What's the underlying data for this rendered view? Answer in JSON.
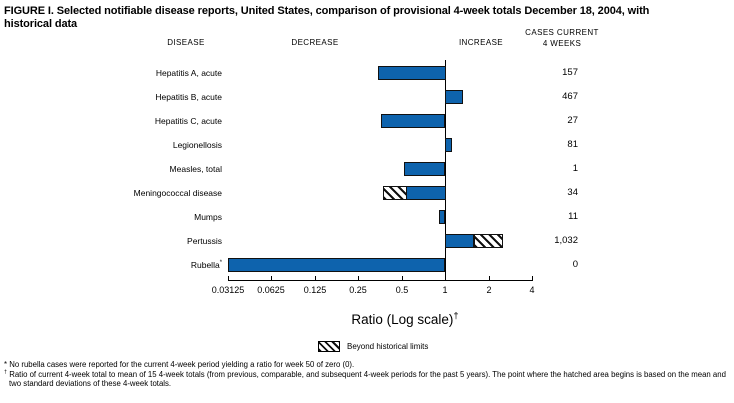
{
  "figure": {
    "title_line1": "FIGURE I. Selected notifiable disease reports, United States, comparison of provisional 4-week totals December 18, 2004, with",
    "title_line2": "historical data"
  },
  "headers": {
    "disease": "DISEASE",
    "decrease": "DECREASE",
    "increase": "INCREASE",
    "cases_line1": "CASES CURRENT",
    "cases_line2": "4 WEEKS"
  },
  "chart_data": {
    "type": "bar",
    "orientation": "horizontal",
    "scale": "log2",
    "axis": {
      "min": 0.03125,
      "max": 4,
      "baseline": 1,
      "tick_values": [
        0.03125,
        0.0625,
        0.125,
        0.25,
        0.5,
        1,
        2,
        4
      ],
      "ticks": [
        "0.03125",
        "0.0625",
        "0.125",
        "0.25",
        "0.5",
        "1",
        "2",
        "4"
      ],
      "label": "Ratio (Log scale)",
      "label_superscript": "†",
      "grid": false
    },
    "rows": [
      {
        "label": "Hepatitis A, acute",
        "cases": "157",
        "ratio": 0.34
      },
      {
        "label": "Hepatitis B, acute",
        "cases": "467",
        "ratio": 1.34
      },
      {
        "label": "Hepatitis C, acute",
        "cases": "27",
        "ratio": 0.36
      },
      {
        "label": "Legionellosis",
        "cases": "81",
        "ratio": 1.12
      },
      {
        "label": "Measles, total",
        "cases": "1",
        "ratio": 0.52
      },
      {
        "label": "Meningococcal disease",
        "cases": "34",
        "ratio": 0.37,
        "hatch_from": 0.54
      },
      {
        "label": "Mumps",
        "cases": "11",
        "ratio": 0.91
      },
      {
        "label": "Pertussis",
        "cases": "1,032",
        "ratio": 2.5,
        "hatch_from": 1.6
      },
      {
        "label": "Rubella",
        "label_superscript": "*",
        "cases": "0",
        "ratio": 0.03125,
        "actual_ratio": 0
      }
    ],
    "legend": [
      {
        "swatch": "hatched",
        "label": "Beyond historical limits"
      }
    ],
    "colors": {
      "bar_fill": "#0e63ad",
      "bar_border": "#111111",
      "hatch_stripe": "#111111"
    }
  },
  "footnotes": [
    {
      "marker": "*",
      "text": "No rubella cases were reported for the current 4-week period yielding a ratio for week 50 of zero (0)."
    },
    {
      "marker": "†",
      "text": "Ratio of current 4-week total to mean of 15 4-week totals (from previous, comparable, and subsequent 4-week periods for the past 5 years). The point where the hatched area begins is based on the mean and two standard deviations of these 4-week totals."
    }
  ]
}
